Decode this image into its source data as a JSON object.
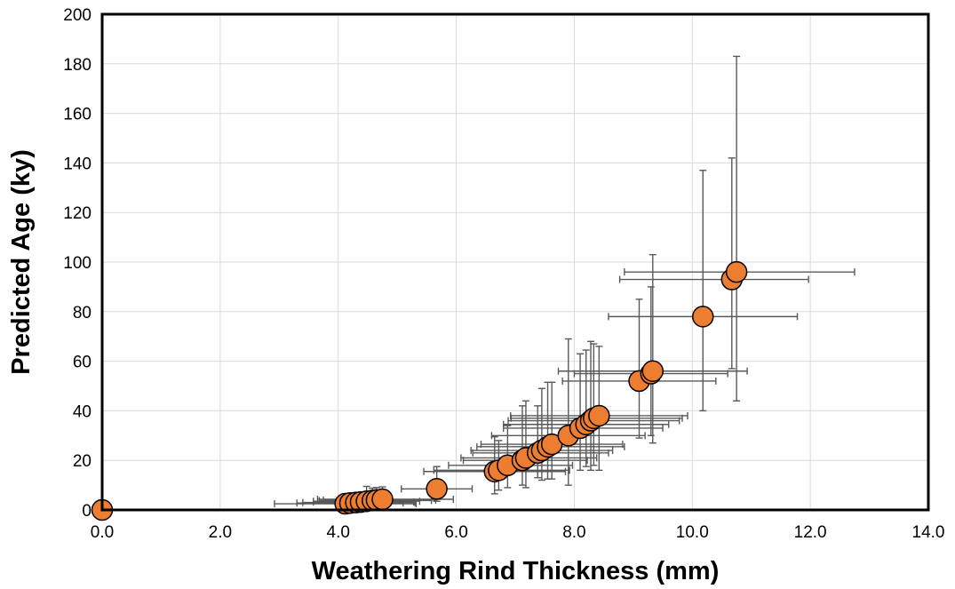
{
  "chart_data": {
    "type": "scatter",
    "title": "",
    "xlabel": "Weathering Rind Thickness (mm)",
    "ylabel": "Predicted Age (ky)",
    "xlim": [
      0,
      14
    ],
    "ylim": [
      0,
      200
    ],
    "x_ticks": [
      "0.0",
      "2.0",
      "4.0",
      "6.0",
      "8.0",
      "10.0",
      "12.0",
      "14.0"
    ],
    "y_ticks": [
      "0",
      "20",
      "40",
      "60",
      "80",
      "100",
      "120",
      "140",
      "160",
      "180",
      "200"
    ],
    "grid": true,
    "legend": "none",
    "marker_color": "#ED7D31",
    "marker_edge_color": "#000000",
    "errorbar_color": "#595959",
    "points": [
      {
        "x": 0.0,
        "y": 0,
        "xerr": [
          0,
          0
        ],
        "yerr": [
          0,
          0
        ]
      },
      {
        "x": 4.12,
        "y": 2.5,
        "xerr": [
          1.2,
          1.2
        ],
        "yerr": [
          2.0,
          2.0
        ]
      },
      {
        "x": 4.2,
        "y": 2.8,
        "xerr": [
          0.9,
          0.9
        ],
        "yerr": [
          2.2,
          2.2
        ]
      },
      {
        "x": 4.3,
        "y": 3.0,
        "xerr": [
          0.9,
          1.0
        ],
        "yerr": [
          2.5,
          2.5
        ]
      },
      {
        "x": 4.38,
        "y": 3.2,
        "xerr": [
          0.8,
          0.9
        ],
        "yerr": [
          3.0,
          3.0
        ]
      },
      {
        "x": 4.48,
        "y": 3.5,
        "xerr": [
          0.9,
          0.9
        ],
        "yerr": [
          4.0,
          6.0
        ]
      },
      {
        "x": 4.58,
        "y": 3.8,
        "xerr": [
          0.9,
          1.0
        ],
        "yerr": [
          3.5,
          5.0
        ]
      },
      {
        "x": 4.65,
        "y": 4.0,
        "xerr": [
          0.9,
          1.0
        ],
        "yerr": [
          3.0,
          5.0
        ]
      },
      {
        "x": 4.75,
        "y": 4.3,
        "xerr": [
          1.1,
          1.2
        ],
        "yerr": [
          3.5,
          5.0
        ]
      },
      {
        "x": 5.67,
        "y": 8.5,
        "xerr": [
          0.6,
          0.6
        ],
        "yerr": [
          5.0,
          9.0
        ]
      },
      {
        "x": 6.65,
        "y": 15.5,
        "xerr": [
          1.2,
          1.2
        ],
        "yerr": [
          9.0,
          14.0
        ]
      },
      {
        "x": 6.72,
        "y": 16.0,
        "xerr": [
          1.1,
          1.2
        ],
        "yerr": [
          8.0,
          12.0
        ]
      },
      {
        "x": 6.87,
        "y": 18.0,
        "xerr": [
          1.0,
          1.1
        ],
        "yerr": [
          9.0,
          16.0
        ]
      },
      {
        "x": 7.12,
        "y": 20.0,
        "xerr": [
          1.0,
          1.1
        ],
        "yerr": [
          10.0,
          22.0
        ]
      },
      {
        "x": 7.18,
        "y": 21.0,
        "xerr": [
          1.1,
          1.2
        ],
        "yerr": [
          12.0,
          23.0
        ]
      },
      {
        "x": 7.38,
        "y": 23.0,
        "xerr": [
          1.1,
          1.2
        ],
        "yerr": [
          10.0,
          19.0
        ]
      },
      {
        "x": 7.45,
        "y": 24.0,
        "xerr": [
          1.2,
          1.2
        ],
        "yerr": [
          12.0,
          25.0
        ]
      },
      {
        "x": 7.55,
        "y": 25.5,
        "xerr": [
          1.2,
          1.3
        ],
        "yerr": [
          13.0,
          26.0
        ]
      },
      {
        "x": 7.62,
        "y": 26.5,
        "xerr": [
          1.2,
          1.2
        ],
        "yerr": [
          14.0,
          25.0
        ]
      },
      {
        "x": 7.9,
        "y": 30.0,
        "xerr": [
          1.3,
          1.3
        ],
        "yerr": [
          20.0,
          39.0
        ]
      },
      {
        "x": 8.1,
        "y": 33.0,
        "xerr": [
          1.3,
          1.4
        ],
        "yerr": [
          17.0,
          30.0
        ]
      },
      {
        "x": 8.2,
        "y": 34.5,
        "xerr": [
          1.4,
          1.4
        ],
        "yerr": [
          17.0,
          30.0
        ]
      },
      {
        "x": 8.28,
        "y": 36.0,
        "xerr": [
          1.4,
          1.5
        ],
        "yerr": [
          20.0,
          32.0
        ]
      },
      {
        "x": 8.33,
        "y": 37.0,
        "xerr": [
          1.4,
          1.5
        ],
        "yerr": [
          19.0,
          30.0
        ]
      },
      {
        "x": 8.42,
        "y": 38.0,
        "xerr": [
          1.5,
          1.5
        ],
        "yerr": [
          22.0,
          28.0
        ]
      },
      {
        "x": 9.1,
        "y": 52.0,
        "xerr": [
          1.3,
          1.3
        ],
        "yerr": [
          23.0,
          33.0
        ]
      },
      {
        "x": 9.3,
        "y": 55.0,
        "xerr": [
          1.3,
          1.3
        ],
        "yerr": [
          25.0,
          35.0
        ]
      },
      {
        "x": 9.33,
        "y": 56.0,
        "xerr": [
          1.6,
          1.6
        ],
        "yerr": [
          29.0,
          47.0
        ]
      },
      {
        "x": 10.18,
        "y": 78.0,
        "xerr": [
          1.6,
          1.6
        ],
        "yerr": [
          38.0,
          59.0
        ]
      },
      {
        "x": 10.67,
        "y": 93.0,
        "xerr": [
          1.9,
          1.3
        ],
        "yerr": [
          36.0,
          49.0
        ]
      },
      {
        "x": 10.75,
        "y": 96.0,
        "xerr": [
          1.9,
          2.0
        ],
        "yerr": [
          52.0,
          87.0
        ]
      }
    ]
  }
}
